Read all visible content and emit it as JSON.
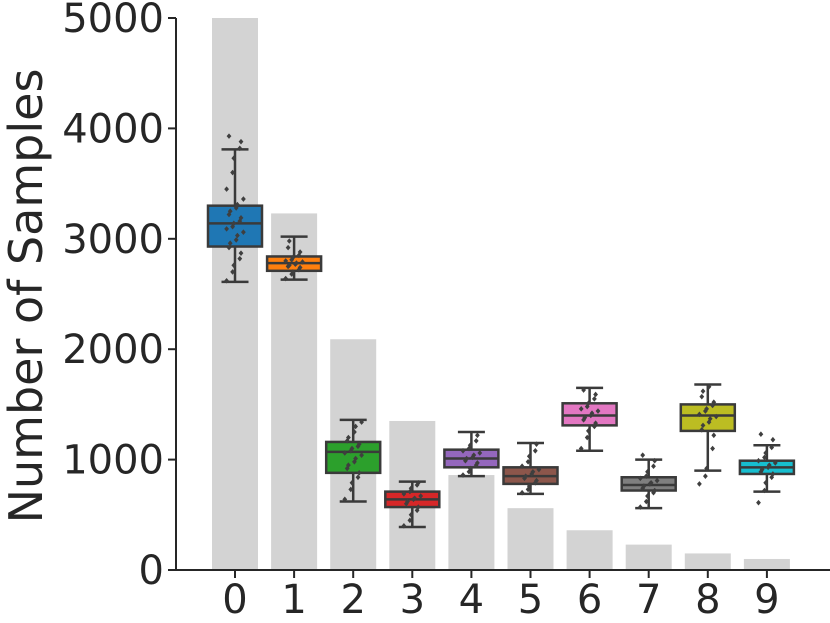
{
  "chart_data": {
    "type": "bar",
    "ylabel": "Number of Samples",
    "xlabel": "",
    "ylim": [
      0,
      5000
    ],
    "yticks": [
      0,
      1000,
      2000,
      3000,
      4000,
      5000
    ],
    "categories": [
      "0",
      "1",
      "2",
      "3",
      "4",
      "5",
      "6",
      "7",
      "8",
      "9"
    ],
    "bar_color": "#d3d3d3",
    "bars": [
      5000,
      3230,
      2090,
      1350,
      860,
      560,
      360,
      230,
      150,
      100
    ],
    "boxplots": [
      {
        "category": "0",
        "color": "#1f77b4",
        "whisker_low": 2610,
        "q1": 2930,
        "median": 3140,
        "q3": 3300,
        "whisker_high": 3810,
        "points": [
          2620,
          2700,
          2760,
          2820,
          2870,
          2920,
          2960,
          2990,
          3030,
          3060,
          3090,
          3110,
          3140,
          3160,
          3190,
          3220,
          3250,
          3280,
          3310,
          3360,
          3450,
          3600,
          3730,
          3820,
          3880,
          3930
        ]
      },
      {
        "category": "1",
        "color": "#ff7f0e",
        "whisker_low": 2630,
        "q1": 2710,
        "median": 2780,
        "q3": 2840,
        "whisker_high": 3020,
        "points": [
          2640,
          2680,
          2700,
          2720,
          2740,
          2750,
          2760,
          2770,
          2780,
          2790,
          2800,
          2810,
          2830,
          2850,
          2880,
          2920,
          2980
        ]
      },
      {
        "category": "2",
        "color": "#2ca02c",
        "whisker_low": 620,
        "q1": 880,
        "median": 1070,
        "q3": 1160,
        "whisker_high": 1360,
        "points": [
          640,
          730,
          790,
          840,
          880,
          920,
          950,
          980,
          1010,
          1040,
          1060,
          1080,
          1100,
          1120,
          1140,
          1170,
          1200,
          1250,
          1300,
          1340
        ]
      },
      {
        "category": "3",
        "color": "#d62728",
        "whisker_low": 390,
        "q1": 570,
        "median": 640,
        "q3": 710,
        "whisker_high": 800,
        "points": [
          400,
          450,
          500,
          540,
          570,
          600,
          620,
          640,
          650,
          670,
          690,
          710,
          740,
          770,
          790
        ]
      },
      {
        "category": "4",
        "color": "#9467bd",
        "whisker_low": 850,
        "q1": 930,
        "median": 1010,
        "q3": 1090,
        "whisker_high": 1250,
        "points": [
          860,
          890,
          920,
          950,
          970,
          990,
          1010,
          1020,
          1040,
          1060,
          1080,
          1100,
          1130,
          1170,
          1220
        ]
      },
      {
        "category": "5",
        "color": "#8c564b",
        "whisker_low": 690,
        "q1": 780,
        "median": 850,
        "q3": 930,
        "whisker_high": 1150,
        "points": [
          700,
          730,
          760,
          790,
          810,
          830,
          850,
          870,
          890,
          910,
          940,
          980,
          1030,
          1080,
          1140
        ]
      },
      {
        "category": "6",
        "color": "#e377c2",
        "whisker_low": 1080,
        "q1": 1310,
        "median": 1400,
        "q3": 1510,
        "whisker_high": 1650,
        "points": [
          1100,
          1200,
          1260,
          1300,
          1330,
          1360,
          1380,
          1400,
          1420,
          1440,
          1460,
          1480,
          1510,
          1550,
          1590,
          1630
        ]
      },
      {
        "category": "7",
        "color": "#7f7f7f",
        "whisker_low": 560,
        "q1": 720,
        "median": 770,
        "q3": 840,
        "whisker_high": 1000,
        "points": [
          570,
          620,
          670,
          700,
          720,
          740,
          760,
          780,
          790,
          810,
          830,
          850,
          890,
          940,
          990,
          1040
        ]
      },
      {
        "category": "8",
        "color": "#bcbd22",
        "whisker_low": 900,
        "q1": 1260,
        "median": 1400,
        "q3": 1500,
        "whisker_high": 1680,
        "points": [
          780,
          850,
          920,
          1100,
          1220,
          1270,
          1310,
          1340,
          1370,
          1390,
          1410,
          1440,
          1460,
          1490,
          1520,
          1570,
          1620,
          1660
        ]
      },
      {
        "category": "9",
        "color": "#17becf",
        "whisker_low": 710,
        "q1": 870,
        "median": 930,
        "q3": 990,
        "whisker_high": 1130,
        "points": [
          610,
          720,
          790,
          840,
          870,
          890,
          910,
          930,
          950,
          970,
          990,
          1020,
          1060,
          1110,
          1180,
          1230
        ]
      }
    ]
  }
}
